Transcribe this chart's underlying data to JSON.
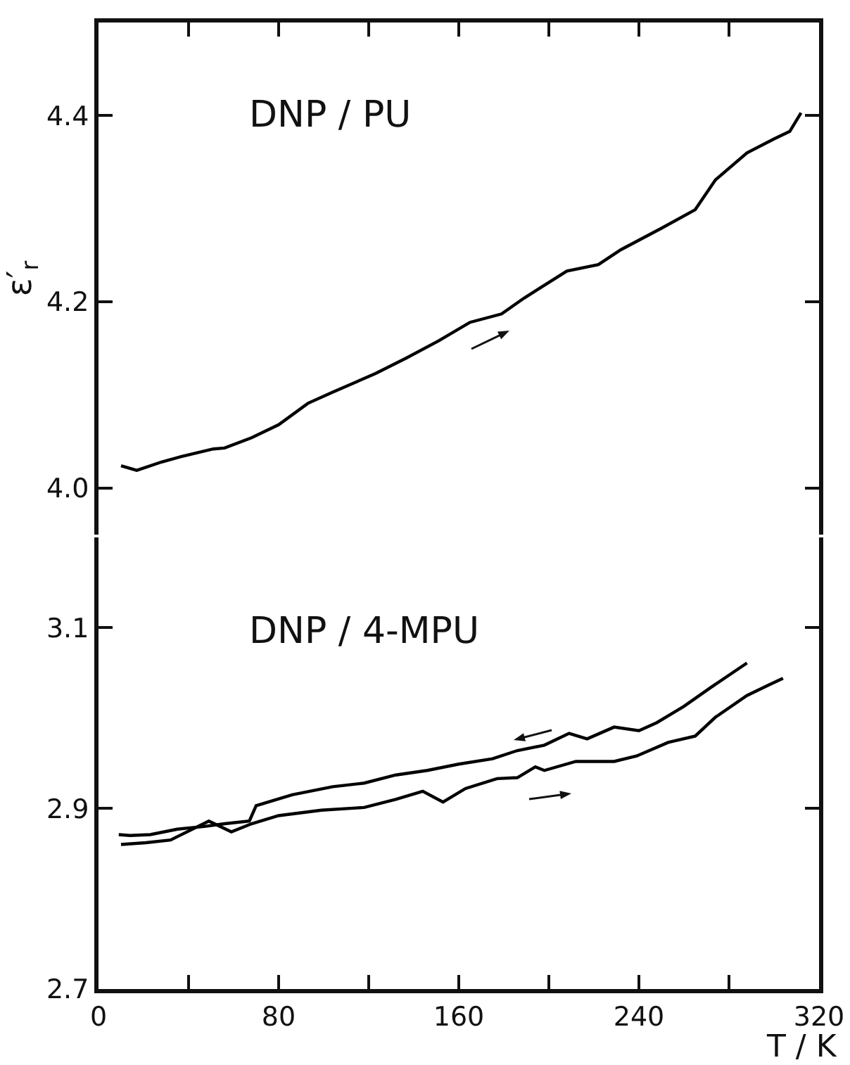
{
  "chart_data": [
    {
      "type": "line",
      "ylabel": "ε′$_{r}$",
      "annotations": [
        "DNP / PU"
      ],
      "xlim": [
        0,
        320
      ],
      "xticks": [
        {
          "value": 40,
          "label": null
        },
        {
          "value": 80,
          "label": null
        },
        {
          "value": 120,
          "label": null
        },
        {
          "value": 160,
          "label": null
        },
        {
          "value": 200,
          "label": null
        },
        {
          "value": 240,
          "label": null
        },
        {
          "value": 280,
          "label": null
        }
      ],
      "ylim": [
        3.95,
        4.5
      ],
      "yticks": [
        {
          "value": 4,
          "label": "4.0"
        },
        4.2,
        4.4
      ],
      "tick_labels": "y",
      "line_style": "solid",
      "marker": "none",
      "series": [
        {
          "color": "#000000",
          "x": [
            10,
            17,
            28,
            37,
            51,
            56,
            68,
            80,
            93,
            104,
            123,
            137,
            151,
            165,
            179,
            189,
            208,
            222,
            232,
            250,
            265,
            274,
            288,
            300,
            307,
            312
          ],
          "values": [
            4.024,
            4.019,
            4.028,
            4.034,
            4.042,
            4.043,
            4.054,
            4.068,
            4.091,
            4.103,
            4.123,
            4.14,
            4.158,
            4.178,
            4.187,
            4.204,
            4.233,
            4.24,
            4.256,
            4.279,
            4.299,
            4.331,
            4.36,
            4.375,
            4.383,
            4.403
          ]
        }
      ]
    },
    {
      "type": "line",
      "xlabel": "T / K",
      "annotations": [
        "DNP / 4-MPU"
      ],
      "xlim": [
        0,
        320
      ],
      "xticks": [
        0,
        {
          "value": 40,
          "label": null
        },
        80,
        {
          "value": 120,
          "label": null
        },
        160,
        {
          "value": 200,
          "label": null
        },
        240,
        {
          "value": 280,
          "label": null
        },
        320
      ],
      "ylim": [
        2.7,
        3.2
      ],
      "yticks": [
        2.7,
        2.9,
        3.1
      ],
      "line_style": "solid",
      "marker": "none",
      "series": [
        {
          "color": "#000000",
          "x": [
            288,
            272,
            260,
            248,
            240,
            229,
            217,
            209,
            198,
            186,
            175,
            160,
            146,
            132,
            118,
            104,
            86,
            70,
            67,
            56,
            47,
            35,
            23,
            14,
            9
          ],
          "values": [
            3.061,
            3.034,
            3.013,
            2.995,
            2.986,
            2.99,
            2.977,
            2.983,
            2.97,
            2.964,
            2.955,
            2.949,
            2.942,
            2.937,
            2.928,
            2.924,
            2.915,
            2.903,
            2.886,
            2.883,
            2.88,
            2.877,
            2.871,
            2.87,
            2.871
          ]
        },
        {
          "color": "#000000",
          "x": [
            10,
            21,
            32,
            49,
            59,
            68,
            80,
            99,
            118,
            132,
            144,
            153,
            163,
            177,
            186,
            194,
            198,
            212,
            229,
            239,
            253,
            265,
            274,
            288,
            298,
            304
          ],
          "values": [
            2.86,
            2.862,
            2.865,
            2.886,
            2.874,
            2.883,
            2.892,
            2.898,
            2.901,
            2.91,
            2.919,
            2.907,
            2.922,
            2.933,
            2.934,
            2.946,
            2.942,
            2.952,
            2.952,
            2.958,
            2.973,
            2.98,
            3.001,
            3.025,
            3.037,
            3.044
          ]
        }
      ]
    }
  ]
}
